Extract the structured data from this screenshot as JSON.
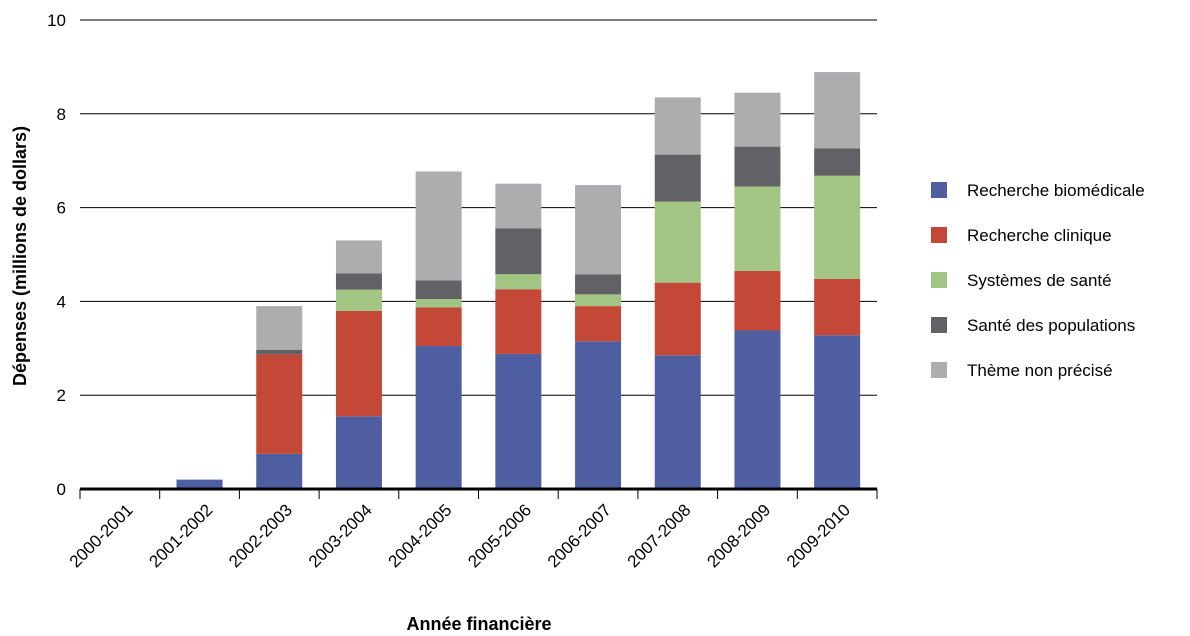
{
  "chart_data": {
    "type": "bar",
    "stacked": true,
    "xlabel": "Année financière",
    "ylabel": "Dépenses (millions de dollars)",
    "ylim": [
      0,
      10
    ],
    "yticks": [
      0,
      2,
      4,
      6,
      8,
      10
    ],
    "grid": true,
    "legend_position": "right",
    "categories": [
      "2000-2001",
      "2001-2002",
      "2002-2003",
      "2003-2004",
      "2004-2005",
      "2005-2006",
      "2006-2007",
      "2007-2008",
      "2008-2009",
      "2009-2010"
    ],
    "series": [
      {
        "name": "Recherche biomédicale",
        "color": "#4e5ea1",
        "values": [
          0,
          0.2,
          0.75,
          1.55,
          3.05,
          2.88,
          3.15,
          2.85,
          3.38,
          3.28
        ]
      },
      {
        "name": "Recherche clinique",
        "color": "#c44837",
        "values": [
          0,
          0,
          2.12,
          2.25,
          0.82,
          1.38,
          0.75,
          1.55,
          1.27,
          1.2
        ]
      },
      {
        "name": "Systèmes de santé",
        "color": "#a3c584",
        "values": [
          0,
          0,
          0,
          0.45,
          0.18,
          0.32,
          0.25,
          1.73,
          1.8,
          2.2
        ]
      },
      {
        "name": "Santé des populations",
        "color": "#616166",
        "values": [
          0,
          0,
          0.1,
          0.35,
          0.4,
          0.98,
          0.43,
          1.0,
          0.85,
          0.58
        ]
      },
      {
        "name": "Thème non précisé",
        "color": "#adadaf",
        "values": [
          0,
          0,
          0.93,
          0.7,
          2.32,
          0.95,
          1.9,
          1.22,
          1.15,
          1.63
        ]
      }
    ]
  }
}
